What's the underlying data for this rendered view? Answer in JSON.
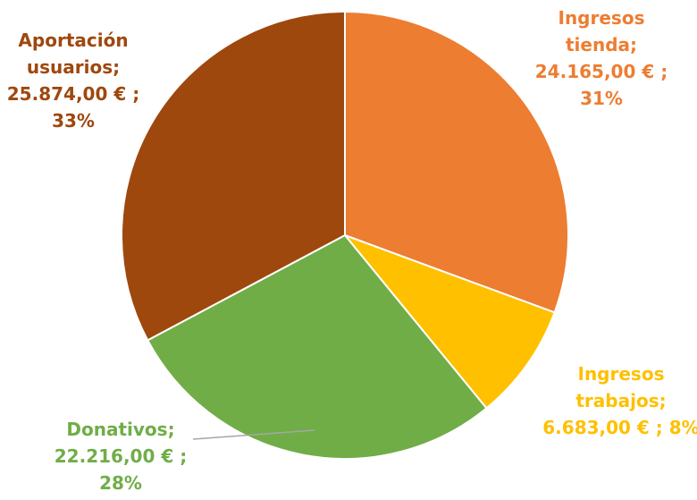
{
  "chart_data": {
    "type": "pie",
    "title": "",
    "slices": [
      {
        "name": "Ingresos tienda",
        "value": 24165.0,
        "percent": 31,
        "color": "#ED7D31",
        "label_lines": [
          "Ingresos",
          "tienda;",
          "24.165,00 € ;",
          "31%"
        ]
      },
      {
        "name": "Ingresos trabajos",
        "value": 6683.0,
        "percent": 8,
        "color": "#FFC000",
        "label_lines": [
          "Ingresos",
          "trabajos;",
          "6.683,00 € ; 8%"
        ]
      },
      {
        "name": "Donativos",
        "value": 22216.0,
        "percent": 28,
        "color": "#70AD47",
        "label_lines": [
          "Donativos;",
          "22.216,00 € ;",
          "28%"
        ]
      },
      {
        "name": "Aportación usuarios",
        "value": 25874.0,
        "percent": 33,
        "color": "#9E480E",
        "label_lines": [
          "Aportación",
          "usuarios;",
          "25.874,00 € ;",
          "33%"
        ]
      }
    ],
    "start_angle": "12 o'clock",
    "direction": "clockwise",
    "legend": "none"
  }
}
